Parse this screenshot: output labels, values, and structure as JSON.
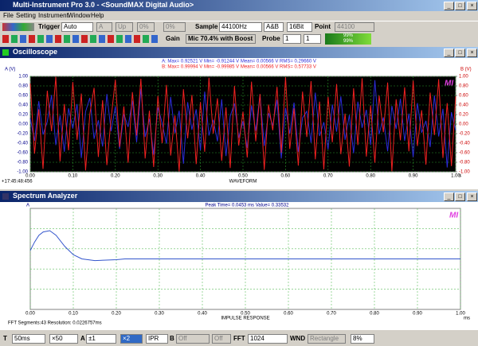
{
  "window": {
    "title": "Multi-Instrument Pro 3.0 - <SoundMAX Digital Audio>"
  },
  "menu": [
    "File",
    "Setting",
    "Instrument",
    "Window",
    "Help"
  ],
  "toolbar1": {
    "trigger_label": "Trigger",
    "trigger_mode": "Auto",
    "channel": "A",
    "edge": "Up",
    "level": "0%",
    "delay": "0%",
    "sample_label": "Sample",
    "sample_rate": "44100Hz",
    "channels": "A&B",
    "bits": "16Bit",
    "point_label": "Point",
    "points": "44100"
  },
  "toolbar2": {
    "gain_label": "Gain",
    "input": "Mic 70.4% with Boost",
    "probe_label": "Probe",
    "probe_a": "1",
    "probe_b": "1",
    "meter_a": "99%",
    "meter_b": "99%"
  },
  "status_bar": {
    "t_label": "T",
    "timebase": "50ms",
    "x_zoom": "×50",
    "a_label": "A",
    "a_range": "±1",
    "a_zoom": "×2",
    "mode": "IPR",
    "b_label": "B",
    "b_range": "Off",
    "b_zoom": "Off",
    "fft_label": "FFT",
    "fft_size": "1024",
    "wnd_label": "WND",
    "wnd": "Rectangle",
    "overlap": "8%"
  },
  "chart_data": [
    {
      "type": "line",
      "title": "Oscilloscope",
      "stats": [
        "A: Max= 0.92521 V   Min= -0.91244 V   Mean= 0.00566 V   RMS= 0.29660 V",
        "B: Max= 0.99994 V   Min= -0.99985 V   Mean= 0.00566 V   RMS= 0.57733 V"
      ],
      "ylabel": "A (V)",
      "y2label": "B (V)",
      "xlabel": "WAVEFORM",
      "x_unit": "s",
      "timestamp": "+17:45:48:456",
      "logo": "MI",
      "grid": true,
      "xlim": [
        0,
        1
      ],
      "ylim": [
        -1,
        1
      ],
      "y2lim": [
        -1,
        1
      ],
      "xticks": [
        {
          "value": 0,
          "label": "0.00"
        },
        {
          "value": 0.1,
          "label": "0.10"
        },
        {
          "value": 0.2,
          "label": "0.20"
        },
        {
          "value": 0.3,
          "label": "0.30"
        },
        {
          "value": 0.4,
          "label": "0.40"
        },
        {
          "value": 0.5,
          "label": "0.50"
        },
        {
          "value": 0.6,
          "label": "0.60"
        },
        {
          "value": 0.7,
          "label": "0.70"
        },
        {
          "value": 0.8,
          "label": "0.80"
        },
        {
          "value": 0.9,
          "label": "0.90"
        },
        {
          "value": 1,
          "label": "1.00"
        }
      ],
      "yticks": [
        {
          "value": 1,
          "label": "1.00"
        },
        {
          "value": 0.8,
          "label": "0.80"
        },
        {
          "value": 0.6,
          "label": "0.60"
        },
        {
          "value": 0.4,
          "label": "0.40"
        },
        {
          "value": 0.2,
          "label": "0.20"
        },
        {
          "value": 0,
          "label": "0.00"
        },
        {
          "value": -0.2,
          "label": "-0.20"
        },
        {
          "value": -0.4,
          "label": "-0.40"
        },
        {
          "value": -0.6,
          "label": "-0.60"
        },
        {
          "value": -0.8,
          "label": "-0.80"
        },
        {
          "value": -1,
          "label": "-1.00"
        }
      ],
      "y2ticks": [
        {
          "value": 1,
          "label": "1.00"
        },
        {
          "value": 0.8,
          "label": "0.80"
        },
        {
          "value": 0.6,
          "label": "0.60"
        },
        {
          "value": 0.4,
          "label": "0.40"
        },
        {
          "value": 0.2,
          "label": "0.20"
        },
        {
          "value": 0,
          "label": "0.00"
        },
        {
          "value": -0.2,
          "label": "-0.20"
        },
        {
          "value": -0.4,
          "label": "-0.40"
        },
        {
          "value": -0.6,
          "label": "-0.60"
        },
        {
          "value": -0.8,
          "label": "-0.80"
        },
        {
          "value": -1,
          "label": "-1.00"
        }
      ],
      "x": [
        0,
        0.01,
        0.02,
        0.03,
        0.04,
        0.05,
        0.06,
        0.07,
        0.08,
        0.09,
        0.1,
        0.11,
        0.12,
        0.13,
        0.14,
        0.15,
        0.16,
        0.17,
        0.18,
        0.19,
        0.2,
        0.21,
        0.22,
        0.23,
        0.24,
        0.25,
        0.26,
        0.27,
        0.28,
        0.29,
        0.3,
        0.31,
        0.32,
        0.33,
        0.34,
        0.35,
        0.36,
        0.37,
        0.38,
        0.39,
        0.4,
        0.41,
        0.42,
        0.43,
        0.44,
        0.45,
        0.46,
        0.47,
        0.48,
        0.49,
        0.5,
        0.51,
        0.52,
        0.53,
        0.54,
        0.55,
        0.56,
        0.57,
        0.58,
        0.59,
        0.6,
        0.61,
        0.62,
        0.63,
        0.64,
        0.65,
        0.66,
        0.67,
        0.68,
        0.69,
        0.7,
        0.71,
        0.72,
        0.73,
        0.74,
        0.75,
        0.76,
        0.77,
        0.78,
        0.79,
        0.8,
        0.81,
        0.82,
        0.83,
        0.84,
        0.85,
        0.86,
        0.87,
        0.88,
        0.89,
        0.9,
        0.91,
        0.92,
        0.93,
        0.94,
        0.95,
        0.96,
        0.97,
        0.98,
        0.99,
        1
      ],
      "series": [
        {
          "color": "#2b2bd9",
          "values": [
            0.12,
            -0.35,
            0.48,
            -0.22,
            0.05,
            0.61,
            -0.44,
            0.18,
            -0.58,
            0.33,
            -0.09,
            0.42,
            -0.71,
            0.26,
            0.55,
            -0.31,
            0.08,
            -0.47,
            0.63,
            -0.15,
            0.37,
            -0.52,
            0.21,
            -0.06,
            0.49,
            -0.38,
            0.74,
            -0.27,
            0.11,
            -0.64,
            0.35,
            0.02,
            -0.41,
            0.57,
            -0.19,
            0.28,
            -0.83,
            0.46,
            -0.12,
            0.31,
            -0.55,
            0.68,
            -0.24,
            0.09,
            -0.36,
            0.52,
            -0.67,
            0.17,
            0.43,
            -0.29,
            0.06,
            -0.5,
            0.39,
            -0.14,
            0.62,
            -0.46,
            0.23,
            -0.03,
            0.51,
            -0.72,
            0.34,
            -0.2,
            0.45,
            -0.58,
            0.13,
            0.27,
            -0.39,
            0.66,
            -0.25,
            0.04,
            -0.53,
            0.41,
            -0.16,
            0.58,
            -0.33,
            0.19,
            -0.61,
            0.47,
            -0.08,
            0.3,
            -0.44,
            0.92,
            -0.21,
            0.14,
            -0.57,
            0.38,
            -0.1,
            0.53,
            -0.35,
            0.22,
            -0.69,
            0.44,
            -0.18,
            0.07,
            -0.48,
            0.6,
            -0.26,
            0.32,
            -0.91,
            0.25,
            -0.13
          ]
        },
        {
          "color": "#f02020",
          "axis": "y2",
          "values": [
            0.85,
            -0.62,
            0.31,
            -0.94,
            0.7,
            -0.15,
            0.99,
            -0.78,
            0.42,
            -0.55,
            0.88,
            -0.33,
            0.64,
            -0.97,
            0.21,
            0.76,
            -0.69,
            0.5,
            -0.86,
            0.12,
            0.93,
            -0.48,
            0.37,
            -0.81,
            0.67,
            -0.24,
            0.95,
            -0.72,
            0.28,
            -0.9,
            0.59,
            -0.4,
            0.82,
            -0.66,
            0.18,
            -0.99,
            0.73,
            -0.3,
            0.61,
            -0.84,
            0.46,
            -0.58,
            0.97,
            -0.2,
            0.54,
            -0.77,
            0.35,
            -0.92,
            0.8,
            -0.45,
            0.26,
            -0.7,
            0.89,
            -0.36,
            0.63,
            -0.96,
            0.41,
            -0.13,
            0.78,
            -0.6,
            0.98,
            -0.52,
            0.33,
            -0.87,
            0.68,
            -0.27,
            0.9,
            -0.74,
            0.47,
            -0.95,
            0.57,
            -0.38,
            0.84,
            -0.63,
            0.22,
            -0.89,
            0.75,
            -0.44,
            0.96,
            -0.68,
            0.39,
            -0.81,
            0.6,
            -0.17,
            0.87,
            -0.99,
            0.52,
            -0.34,
            0.77,
            -0.57,
            0.91,
            -0.46,
            0.29,
            -0.85,
            0.66,
            -0.23,
            0.94,
            -0.71,
            0.44,
            -0.88,
            0.58
          ]
        }
      ]
    },
    {
      "type": "line",
      "title": "Spectrum Analyzer",
      "annotation": "Peak Time= 0.0453 ms   Value= 0.33532",
      "ylabel": "A",
      "xlabel": "IMPULSE RESPONSE",
      "x_unit": "ms",
      "info": "FFT Segments:43     Resolution: 0.0226757ms",
      "logo": "MI",
      "grid": true,
      "xlim": [
        0,
        1
      ],
      "ylim": [
        -0.6,
        0.6
      ],
      "xticks": [
        {
          "value": 0,
          "label": "0.00"
        },
        {
          "value": 0.1,
          "label": "0.10"
        },
        {
          "value": 0.2,
          "label": "0.20"
        },
        {
          "value": 0.3,
          "label": "0.30"
        },
        {
          "value": 0.4,
          "label": "0.40"
        },
        {
          "value": 0.5,
          "label": "0.50"
        },
        {
          "value": 0.6,
          "label": "0.60"
        },
        {
          "value": 0.7,
          "label": "0.70"
        },
        {
          "value": 0.8,
          "label": "0.80"
        },
        {
          "value": 0.9,
          "label": "0.90"
        },
        {
          "value": 1,
          "label": "1.00"
        }
      ],
      "x": [
        0,
        0.01,
        0.02,
        0.03,
        0.0453,
        0.06,
        0.08,
        0.1,
        0.12,
        0.15,
        0.2,
        0.22,
        1
      ],
      "series": [
        {
          "color": "#3355cc",
          "values": [
            0.1,
            0.2,
            0.28,
            0.32,
            0.33532,
            0.28,
            0.15,
            0.05,
            0,
            -0.02,
            -0.01,
            0,
            0
          ]
        }
      ]
    }
  ]
}
